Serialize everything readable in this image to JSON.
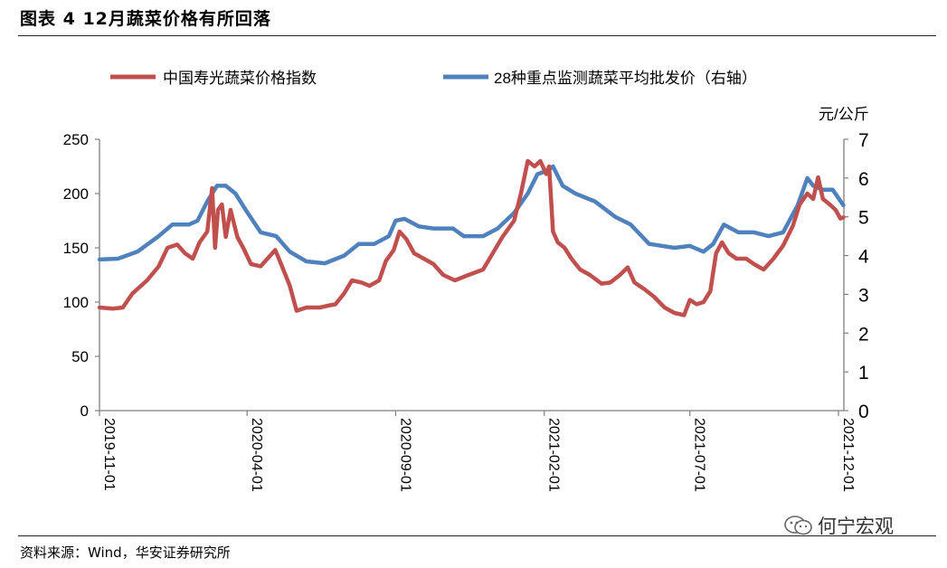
{
  "figure": {
    "title": "图表 4 12月蔬菜价格有所回落",
    "source": "资料来源：Wind，华安证券研究所",
    "watermark": "何宁宏观"
  },
  "colors": {
    "index": "#C0504D",
    "price": "#4F81BD",
    "axis": "#7f7f7f"
  },
  "chart_data": {
    "type": "line",
    "legend_position": "top",
    "grid": false,
    "x_ticks": [
      "2019-11-01",
      "2020-04-01",
      "2020-09-01",
      "2021-02-01",
      "2021-07-01",
      "2021-12-01"
    ],
    "x_range": [
      "2019-11-01",
      "2021-12-06"
    ],
    "left_axis": {
      "ylim": [
        0,
        250
      ],
      "ticks": [
        0,
        50,
        100,
        150,
        200,
        250
      ]
    },
    "right_axis": {
      "label": "元/公斤",
      "ylim": [
        0,
        7
      ],
      "ticks": [
        0,
        1,
        2,
        3,
        4,
        5,
        6,
        7
      ]
    },
    "series": [
      {
        "name": "中国寿光蔬菜价格指数",
        "axis": "left",
        "points": [
          [
            "2019-11-01",
            95
          ],
          [
            "2019-11-15",
            94
          ],
          [
            "2019-11-25",
            95
          ],
          [
            "2019-12-05",
            108
          ],
          [
            "2019-12-20",
            120
          ],
          [
            "2020-01-01",
            133
          ],
          [
            "2020-01-10",
            150
          ],
          [
            "2020-01-20",
            153
          ],
          [
            "2020-01-28",
            145
          ],
          [
            "2020-02-05",
            140
          ],
          [
            "2020-02-12",
            155
          ],
          [
            "2020-02-20",
            165
          ],
          [
            "2020-02-25",
            205
          ],
          [
            "2020-02-28",
            150
          ],
          [
            "2020-03-02",
            185
          ],
          [
            "2020-03-06",
            190
          ],
          [
            "2020-03-10",
            160
          ],
          [
            "2020-03-15",
            185
          ],
          [
            "2020-03-22",
            160
          ],
          [
            "2020-03-28",
            150
          ],
          [
            "2020-04-05",
            135
          ],
          [
            "2020-04-15",
            133
          ],
          [
            "2020-04-22",
            140
          ],
          [
            "2020-04-30",
            148
          ],
          [
            "2020-05-06",
            135
          ],
          [
            "2020-05-15",
            115
          ],
          [
            "2020-05-22",
            92
          ],
          [
            "2020-06-01",
            95
          ],
          [
            "2020-06-15",
            95
          ],
          [
            "2020-06-25",
            97
          ],
          [
            "2020-07-01",
            98
          ],
          [
            "2020-07-10",
            108
          ],
          [
            "2020-07-18",
            120
          ],
          [
            "2020-07-28",
            118
          ],
          [
            "2020-08-05",
            115
          ],
          [
            "2020-08-15",
            120
          ],
          [
            "2020-08-22",
            138
          ],
          [
            "2020-08-30",
            148
          ],
          [
            "2020-09-05",
            165
          ],
          [
            "2020-09-12",
            158
          ],
          [
            "2020-09-20",
            145
          ],
          [
            "2020-09-30",
            140
          ],
          [
            "2020-10-10",
            135
          ],
          [
            "2020-10-20",
            125
          ],
          [
            "2020-11-01",
            120
          ],
          [
            "2020-11-15",
            125
          ],
          [
            "2020-11-30",
            130
          ],
          [
            "2020-12-10",
            145
          ],
          [
            "2020-12-20",
            160
          ],
          [
            "2021-01-01",
            175
          ],
          [
            "2021-01-08",
            200
          ],
          [
            "2021-01-15",
            230
          ],
          [
            "2021-01-22",
            225
          ],
          [
            "2021-01-28",
            230
          ],
          [
            "2021-02-03",
            218
          ],
          [
            "2021-02-06",
            225
          ],
          [
            "2021-02-10",
            165
          ],
          [
            "2021-02-15",
            155
          ],
          [
            "2021-02-22",
            150
          ],
          [
            "2021-03-01",
            140
          ],
          [
            "2021-03-10",
            130
          ],
          [
            "2021-03-20",
            125
          ],
          [
            "2021-04-01",
            117
          ],
          [
            "2021-04-10",
            118
          ],
          [
            "2021-04-20",
            125
          ],
          [
            "2021-04-28",
            132
          ],
          [
            "2021-05-05",
            118
          ],
          [
            "2021-05-15",
            112
          ],
          [
            "2021-05-25",
            105
          ],
          [
            "2021-06-05",
            95
          ],
          [
            "2021-06-15",
            90
          ],
          [
            "2021-06-25",
            88
          ],
          [
            "2021-07-01",
            102
          ],
          [
            "2021-07-08",
            98
          ],
          [
            "2021-07-15",
            100
          ],
          [
            "2021-07-22",
            110
          ],
          [
            "2021-07-28",
            145
          ],
          [
            "2021-08-03",
            155
          ],
          [
            "2021-08-10",
            145
          ],
          [
            "2021-08-18",
            140
          ],
          [
            "2021-08-28",
            140
          ],
          [
            "2021-09-05",
            135
          ],
          [
            "2021-09-15",
            130
          ],
          [
            "2021-09-25",
            140
          ],
          [
            "2021-10-05",
            152
          ],
          [
            "2021-10-15",
            170
          ],
          [
            "2021-10-22",
            190
          ],
          [
            "2021-10-30",
            200
          ],
          [
            "2021-11-05",
            195
          ],
          [
            "2021-11-10",
            215
          ],
          [
            "2021-11-15",
            195
          ],
          [
            "2021-11-22",
            190
          ],
          [
            "2021-11-28",
            185
          ],
          [
            "2021-12-03",
            177
          ],
          [
            "2021-12-06",
            178
          ]
        ]
      },
      {
        "name": "28种重点监测蔬菜平均批发价（右轴）",
        "axis": "right",
        "points": [
          [
            "2019-11-01",
            3.9
          ],
          [
            "2019-11-20",
            3.92
          ],
          [
            "2019-12-10",
            4.1
          ],
          [
            "2020-01-01",
            4.5
          ],
          [
            "2020-01-15",
            4.8
          ],
          [
            "2020-02-01",
            4.8
          ],
          [
            "2020-02-10",
            4.9
          ],
          [
            "2020-02-20",
            5.4
          ],
          [
            "2020-03-01",
            5.8
          ],
          [
            "2020-03-10",
            5.8
          ],
          [
            "2020-03-20",
            5.6
          ],
          [
            "2020-03-30",
            5.2
          ],
          [
            "2020-04-15",
            4.6
          ],
          [
            "2020-05-01",
            4.5
          ],
          [
            "2020-05-15",
            4.1
          ],
          [
            "2020-06-01",
            3.85
          ],
          [
            "2020-06-20",
            3.8
          ],
          [
            "2020-07-10",
            4.0
          ],
          [
            "2020-07-25",
            4.3
          ],
          [
            "2020-08-10",
            4.3
          ],
          [
            "2020-08-25",
            4.5
          ],
          [
            "2020-09-01",
            4.9
          ],
          [
            "2020-09-10",
            4.95
          ],
          [
            "2020-09-25",
            4.75
          ],
          [
            "2020-10-10",
            4.7
          ],
          [
            "2020-10-30",
            4.7
          ],
          [
            "2020-11-10",
            4.5
          ],
          [
            "2020-11-30",
            4.5
          ],
          [
            "2020-12-15",
            4.7
          ],
          [
            "2021-01-01",
            5.1
          ],
          [
            "2021-01-15",
            5.6
          ],
          [
            "2021-01-25",
            6.1
          ],
          [
            "2021-02-05",
            6.2
          ],
          [
            "2021-02-10",
            6.3
          ],
          [
            "2021-02-20",
            5.8
          ],
          [
            "2021-03-05",
            5.6
          ],
          [
            "2021-03-25",
            5.4
          ],
          [
            "2021-04-15",
            5.0
          ],
          [
            "2021-05-01",
            4.8
          ],
          [
            "2021-05-20",
            4.3
          ],
          [
            "2021-06-15",
            4.2
          ],
          [
            "2021-07-01",
            4.25
          ],
          [
            "2021-07-15",
            4.1
          ],
          [
            "2021-07-25",
            4.3
          ],
          [
            "2021-08-05",
            4.8
          ],
          [
            "2021-08-20",
            4.6
          ],
          [
            "2021-09-05",
            4.6
          ],
          [
            "2021-09-20",
            4.5
          ],
          [
            "2021-10-05",
            4.6
          ],
          [
            "2021-10-20",
            5.3
          ],
          [
            "2021-10-30",
            6.0
          ],
          [
            "2021-11-05",
            5.8
          ],
          [
            "2021-11-15",
            5.7
          ],
          [
            "2021-11-25",
            5.7
          ],
          [
            "2021-12-06",
            5.3
          ]
        ]
      }
    ]
  }
}
